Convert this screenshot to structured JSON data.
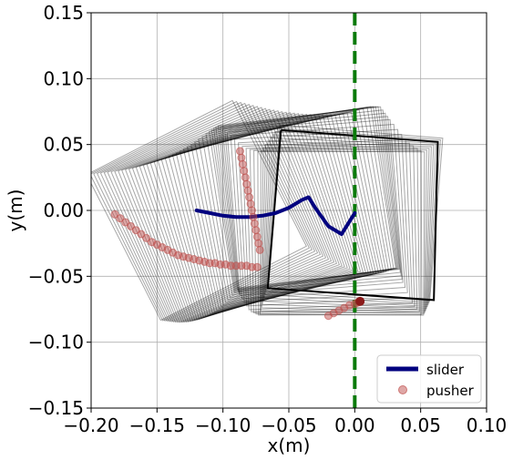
{
  "chart_data": {
    "type": "line",
    "xlabel": "x(m)",
    "ylabel": "y(m)",
    "xlim": [
      -0.2,
      0.1
    ],
    "ylim": [
      -0.15,
      0.15
    ],
    "xticks": [
      -0.2,
      -0.15,
      -0.1,
      -0.05,
      0.0,
      0.05,
      0.1
    ],
    "yticks": [
      -0.15,
      -0.1,
      -0.05,
      0.0,
      0.05,
      0.1,
      0.15
    ],
    "xtick_labels": [
      "−0.20",
      "−0.15",
      "−0.10",
      "−0.05",
      "0.00",
      "0.05",
      "0.10"
    ],
    "ytick_labels": [
      "−0.15",
      "−0.10",
      "−0.05",
      "0.00",
      "0.05",
      "0.10",
      "0.15"
    ],
    "grid": true,
    "legend_position": "lower-right",
    "colors": {
      "slider": "#00007f",
      "pusher": "#c0504d",
      "pusher_end": "#8b1a1a",
      "target_line": "#0a7a0a",
      "outline": "#000000"
    },
    "series": [
      {
        "name": "slider",
        "kind": "line",
        "x": [
          -0.12,
          -0.11,
          -0.1,
          -0.09,
          -0.08,
          -0.07,
          -0.06,
          -0.05,
          -0.04,
          -0.035,
          -0.03,
          -0.02,
          -0.01,
          -0.005,
          0.0
        ],
        "y": [
          0.0,
          -0.002,
          -0.004,
          -0.005,
          -0.005,
          -0.004,
          -0.002,
          0.002,
          0.008,
          0.01,
          0.002,
          -0.012,
          -0.018,
          -0.01,
          -0.002
        ]
      },
      {
        "name": "pusher",
        "kind": "scatter",
        "x": [
          -0.182,
          -0.178,
          -0.174,
          -0.17,
          -0.166,
          -0.162,
          -0.158,
          -0.154,
          -0.15,
          -0.146,
          -0.142,
          -0.138,
          -0.134,
          -0.13,
          -0.126,
          -0.122,
          -0.118,
          -0.114,
          -0.11,
          -0.106,
          -0.102,
          -0.098,
          -0.094,
          -0.09,
          -0.086,
          -0.082,
          -0.078,
          -0.074,
          -0.087,
          -0.086,
          -0.085,
          -0.084,
          -0.083,
          -0.082,
          -0.081,
          -0.08,
          -0.079,
          -0.078,
          -0.077,
          -0.076,
          -0.075,
          -0.074,
          -0.073,
          -0.072,
          -0.02,
          -0.016,
          -0.012,
          -0.008,
          -0.004,
          0.0,
          0.002,
          0.004
        ],
        "y": [
          -0.003,
          -0.006,
          -0.009,
          -0.012,
          -0.015,
          -0.018,
          -0.021,
          -0.024,
          -0.026,
          -0.028,
          -0.03,
          -0.032,
          -0.034,
          -0.035,
          -0.036,
          -0.037,
          -0.038,
          -0.039,
          -0.04,
          -0.04,
          -0.041,
          -0.041,
          -0.042,
          -0.042,
          -0.042,
          -0.042,
          -0.043,
          -0.043,
          0.045,
          0.04,
          0.035,
          0.03,
          0.025,
          0.02,
          0.015,
          0.01,
          0.005,
          0.0,
          -0.005,
          -0.01,
          -0.015,
          -0.02,
          -0.025,
          -0.03,
          -0.08,
          -0.078,
          -0.076,
          -0.074,
          -0.072,
          -0.071,
          -0.07,
          -0.069
        ]
      }
    ],
    "target_line": {
      "x": 0.0
    },
    "final_slider_box": {
      "x": [
        -0.056,
        0.063,
        0.06,
        -0.066,
        -0.056
      ],
      "y": [
        0.061,
        0.052,
        -0.068,
        -0.059,
        0.061
      ]
    }
  }
}
